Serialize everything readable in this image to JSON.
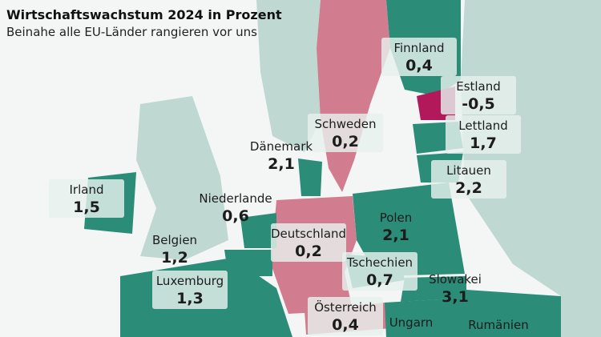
{
  "header": {
    "title": "Wirtschaftswachstum 2024 in Prozent",
    "subtitle": "Beinahe alle EU-Länder rangieren vor uns"
  },
  "countries": [
    {
      "name": "Finnland",
      "value": "0,4"
    },
    {
      "name": "Estland",
      "value": "-0,5"
    },
    {
      "name": "Schweden",
      "value": "0,2"
    },
    {
      "name": "Lettland",
      "value": "1,7"
    },
    {
      "name": "Dänemark",
      "value": "2,1"
    },
    {
      "name": "Litauen",
      "value": "2,2"
    },
    {
      "name": "Irland",
      "value": "1,5"
    },
    {
      "name": "Niederlande",
      "value": "0,6"
    },
    {
      "name": "Polen",
      "value": "2,1"
    },
    {
      "name": "Deutschland",
      "value": "0,2"
    },
    {
      "name": "Belgien",
      "value": "1,2"
    },
    {
      "name": "Tschechien",
      "value": "0,7"
    },
    {
      "name": "Luxemburg",
      "value": "1,3"
    },
    {
      "name": "Slowakei",
      "value": "3,1"
    },
    {
      "name": "Österreich",
      "value": "0,4"
    },
    {
      "name": "Ungarn"
    },
    {
      "name": "Rumänien"
    }
  ]
}
